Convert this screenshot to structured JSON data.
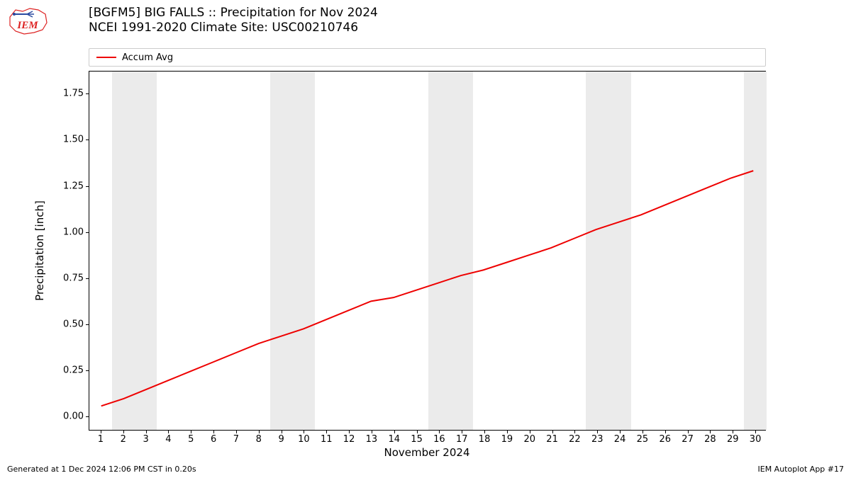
{
  "title_line1": "[BGFM5] BIG FALLS :: Precipitation for Nov 2024",
  "title_line2": "NCEI 1991-2020 Climate Site: USC00210746",
  "legend_label": "Accum Avg",
  "ylabel": "Precipitation [inch]",
  "xlabel": "November 2024",
  "footer_left": "Generated at 1 Dec 2024 12:06 PM CST in 0.20s",
  "footer_right": "IEM Autoplot App #17",
  "chart": {
    "type": "line",
    "line_color": "#ee0000",
    "line_width": 2,
    "background_color": "#ffffff",
    "band_color": "#ebebeb",
    "border_color": "#000000",
    "tick_fontsize": 13,
    "label_fontsize": 15,
    "title_fontsize": 17,
    "x_min": 0.5,
    "x_max": 30.5,
    "y_min": -0.08,
    "y_max": 1.87,
    "x_ticks": [
      1,
      2,
      3,
      4,
      5,
      6,
      7,
      8,
      9,
      10,
      11,
      12,
      13,
      14,
      15,
      16,
      17,
      18,
      19,
      20,
      21,
      22,
      23,
      24,
      25,
      26,
      27,
      28,
      29,
      30
    ],
    "y_ticks": [
      0.0,
      0.25,
      0.5,
      0.75,
      1.0,
      1.25,
      1.5,
      1.75
    ],
    "weekend_bands": [
      [
        1.5,
        3.5
      ],
      [
        8.5,
        10.5
      ],
      [
        15.5,
        17.5
      ],
      [
        22.5,
        24.5
      ],
      [
        29.5,
        30.5
      ]
    ],
    "series": {
      "x": [
        1,
        2,
        3,
        4,
        5,
        6,
        7,
        8,
        9,
        10,
        11,
        12,
        13,
        14,
        15,
        16,
        17,
        18,
        19,
        20,
        21,
        22,
        23,
        24,
        25,
        26,
        27,
        28,
        29,
        30
      ],
      "y": [
        0.05,
        0.09,
        0.14,
        0.19,
        0.24,
        0.29,
        0.34,
        0.39,
        0.43,
        0.47,
        0.52,
        0.57,
        0.62,
        0.64,
        0.68,
        0.72,
        0.76,
        0.79,
        0.83,
        0.87,
        0.91,
        0.96,
        1.01,
        1.05,
        1.09,
        1.14,
        1.19,
        1.24,
        1.29,
        1.33
      ]
    }
  },
  "logo": {
    "text": "IEM",
    "text_color": "#d22",
    "outline_color": "#d22"
  }
}
